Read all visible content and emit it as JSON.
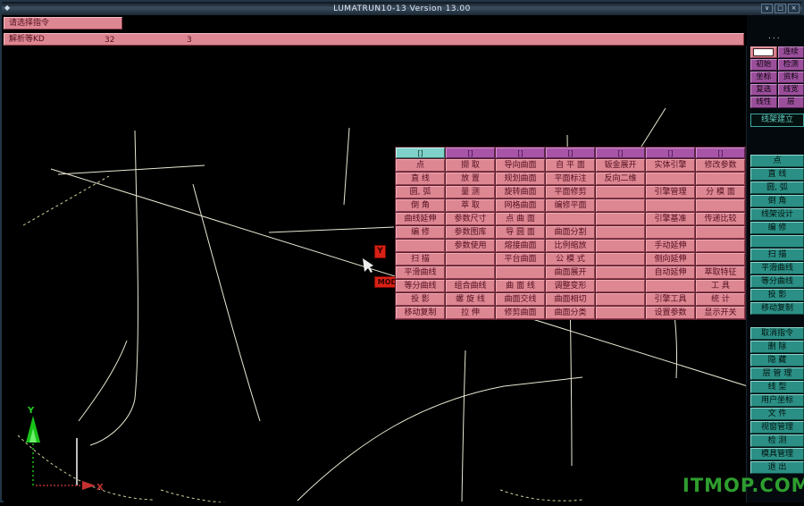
{
  "colors": {
    "pink": "#dd8793",
    "purple": "#9b4f9b",
    "teal": "#2b8f85",
    "canvas_stroke": "#e9e7d2",
    "dashed_stroke": "#d3cf9a",
    "watermark_green": "#2e9e2f",
    "axis_x_red": "#c23030",
    "axis_y_green": "#19c119",
    "marker_red": "#d92015"
  },
  "title_bar": {
    "title": "LUMATRUN10-13 Version 13.00",
    "window_controls": [
      "∨",
      "□",
      "×"
    ]
  },
  "command_bar": {
    "text": "请选择指令"
  },
  "status_bar": {
    "label": "解析等KD",
    "value1": "32",
    "value2": "3"
  },
  "top_right_panel": {
    "dots": "...",
    "rows": [
      [
        "",
        "连续"
      ],
      [
        "初始",
        "检测"
      ],
      [
        "坐标",
        "资料"
      ],
      [
        "复选",
        "线宽"
      ],
      [
        "线性",
        "层"
      ]
    ]
  },
  "mode_button": {
    "label": "线架建立"
  },
  "menu_panel": {
    "tabs": [
      "[]",
      "[]",
      "[]",
      "[]",
      "[]",
      "[]",
      "[]"
    ],
    "selected_tab": 0,
    "columns": [
      {
        "cells": [
          "点",
          "直 线",
          "圆, 弧",
          "倒 角",
          "曲线延伸",
          "编 修",
          "",
          "扫 描",
          "平滑曲线",
          "等分曲线",
          "投 影",
          "移动复制"
        ]
      },
      {
        "cells": [
          "撷 取",
          "放 置",
          "量 测",
          "萃 取",
          "参数尺寸",
          "参数图库",
          "参数使用",
          "",
          "",
          "组合曲线",
          "螺 旋 线",
          "拉 伸"
        ]
      },
      {
        "cells": [
          "导向曲面",
          "规划曲面",
          "旋转曲面",
          "网格曲面",
          "点 曲 面",
          "导 圆 面",
          "熔接曲面",
          "平台曲面",
          "",
          "曲 面 线",
          "曲面交线",
          "修剪曲面"
        ]
      },
      {
        "cells": [
          "自 平 面",
          "平面标注",
          "平面修剪",
          "编修平面",
          "",
          "曲面分割",
          "比例缩放",
          "公 模 式",
          "曲面展开",
          "调整变形",
          "曲面相切",
          "曲面分类"
        ]
      },
      {
        "cells": [
          "钣金展开",
          "反向二维",
          "",
          "",
          "",
          "",
          "",
          "",
          "",
          "",
          "",
          ""
        ]
      },
      {
        "cells": [
          "实体引擎",
          "",
          "引擎管理",
          "",
          "引擎基准",
          "",
          "手动延伸",
          "侧向延伸",
          "自动延伸",
          "",
          "引擎工具",
          "设置参数"
        ]
      },
      {
        "cells": [
          "修改参数",
          "",
          "分 模 面",
          "",
          "传递比较",
          "",
          "",
          "",
          "萃取特征",
          "工 具",
          "统 计",
          "显示开关"
        ]
      }
    ]
  },
  "sidebar": {
    "group1": [
      "点",
      "直 线",
      "圆, 弧",
      "倒 角",
      "线架设计",
      "编 修",
      "",
      "扫 描",
      "平滑曲线",
      "等分曲线",
      "投 影",
      "移动复制"
    ],
    "group2": [
      "取消指令",
      "删 除",
      "隐 藏",
      "层 管 理",
      "线 型",
      "用户坐标",
      "文 件",
      "视窗管理",
      "检 测",
      "模具管理",
      "退 出"
    ]
  },
  "canvas": {
    "axis": {
      "x_label": "X",
      "y_label": "Y"
    },
    "marker_y": "Y",
    "marker_mod": "MOD",
    "watermark": "ITMOP.COM"
  }
}
